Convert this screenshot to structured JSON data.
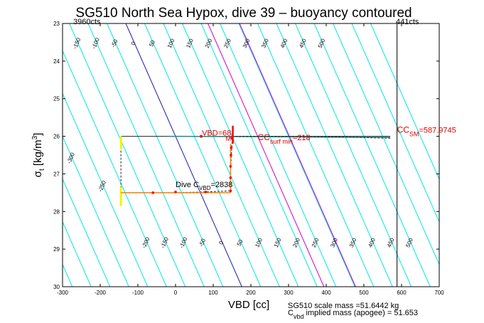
{
  "chart_data": {
    "type": "line",
    "title": "SG510 North Sea Hypox, dive 39 – buoyancy contoured",
    "xlabel": "VBD [cc]",
    "ylabel_main": "σ",
    "ylabel_sub": "t",
    "ylabel_unit_pre": " [kg/m",
    "ylabel_unit_sup": "3",
    "ylabel_unit_post": "]",
    "xlim": [
      -300,
      700
    ],
    "ylim": [
      23,
      30
    ],
    "y_reversed": true,
    "xticks": [
      -300,
      -200,
      -100,
      0,
      100,
      200,
      300,
      400,
      500,
      600,
      700
    ],
    "yticks": [
      23,
      24,
      25,
      26,
      27,
      28,
      29,
      30
    ],
    "corner_labels": {
      "left": "3960cts",
      "right": "441cts"
    },
    "contours": {
      "slope_cc_per_sigma": 44,
      "reference_sigma": 26,
      "cyan_levels": [
        -600,
        -550,
        -500,
        -450,
        -400,
        -350,
        -300,
        -250,
        -200,
        -150,
        -100,
        -50,
        50,
        100,
        150,
        200,
        250,
        300,
        350,
        400,
        450,
        500,
        550,
        600,
        650
      ],
      "blue_levels": [
        0
      ],
      "magenta_levels": [
        218,
        302
      ],
      "top_labels": [
        "-450",
        "-400",
        "-350",
        "-300",
        "-250",
        "-200",
        "-150",
        "-100",
        "-50",
        "0",
        "50",
        "100",
        "150",
        "200",
        "250",
        "300",
        "350",
        "400",
        "450",
        "500"
      ],
      "top_label_values": [
        -450,
        -400,
        -350,
        -300,
        -250,
        -200,
        -150,
        -100,
        -50,
        0,
        50,
        100,
        150,
        200,
        250,
        300,
        350,
        400,
        450,
        500
      ],
      "bottom_labels": [
        "-200",
        "-150",
        "-100",
        "-50",
        "0",
        "50",
        "100",
        "150",
        "200",
        "250",
        "300",
        "350",
        "400",
        "450",
        "500"
      ],
      "bottom_label_values": [
        -200,
        -150,
        -100,
        -50,
        0,
        50,
        100,
        150,
        200,
        250,
        300,
        350,
        400,
        450,
        500
      ],
      "left_labels": [
        "-450",
        "-400",
        "-350",
        "-300",
        "-250"
      ],
      "left_label_values": [
        -450,
        -400,
        -350,
        -300,
        -250
      ]
    },
    "dive_path": [
      [
        -145,
        26.0
      ],
      [
        -145,
        26.8
      ],
      [
        -145,
        27.5
      ],
      [
        0,
        27.5
      ],
      [
        80,
        27.48
      ],
      [
        146,
        27.45
      ],
      [
        146,
        26.95
      ],
      [
        148,
        26.5
      ],
      [
        150,
        26.15
      ],
      [
        150,
        26.0
      ],
      [
        280,
        26.0
      ],
      [
        440,
        26.02
      ],
      [
        570,
        26.05
      ]
    ],
    "surface_line": [
      [
        -145,
        26.0
      ],
      [
        570,
        26.0
      ]
    ],
    "vertical_line_vbd": 588,
    "annotations": {
      "vbd_label": "VBD",
      "vbd_value": "=68",
      "vbd_x": 68,
      "mark_label": "M",
      "dive_c_label": "Dive C",
      "dive_c_sub": "VBD",
      "dive_c_value": "=2838",
      "cc_surf_label": "CC",
      "cc_surf_sub": "surf min",
      "cc_surf_value": "=218",
      "cc_sm_label": "CC",
      "cc_sm_sub": "SM",
      "cc_sm_value": "=587.9745"
    },
    "footer": {
      "line1": "SG510 scale mass =51.6442 kg",
      "line2_main": "C",
      "line2_sub": "vbd",
      "line2_rest": " implied mass (apogee) = 51.653"
    },
    "colors": {
      "cyan": "#00e5e5",
      "blue": "#1a1aa8",
      "magenta": "#cc00cc",
      "red": "#ff0000",
      "orange": "#ff8000",
      "yellow": "#f5f500",
      "path": "#222222",
      "annot_red": "#e00000"
    }
  }
}
